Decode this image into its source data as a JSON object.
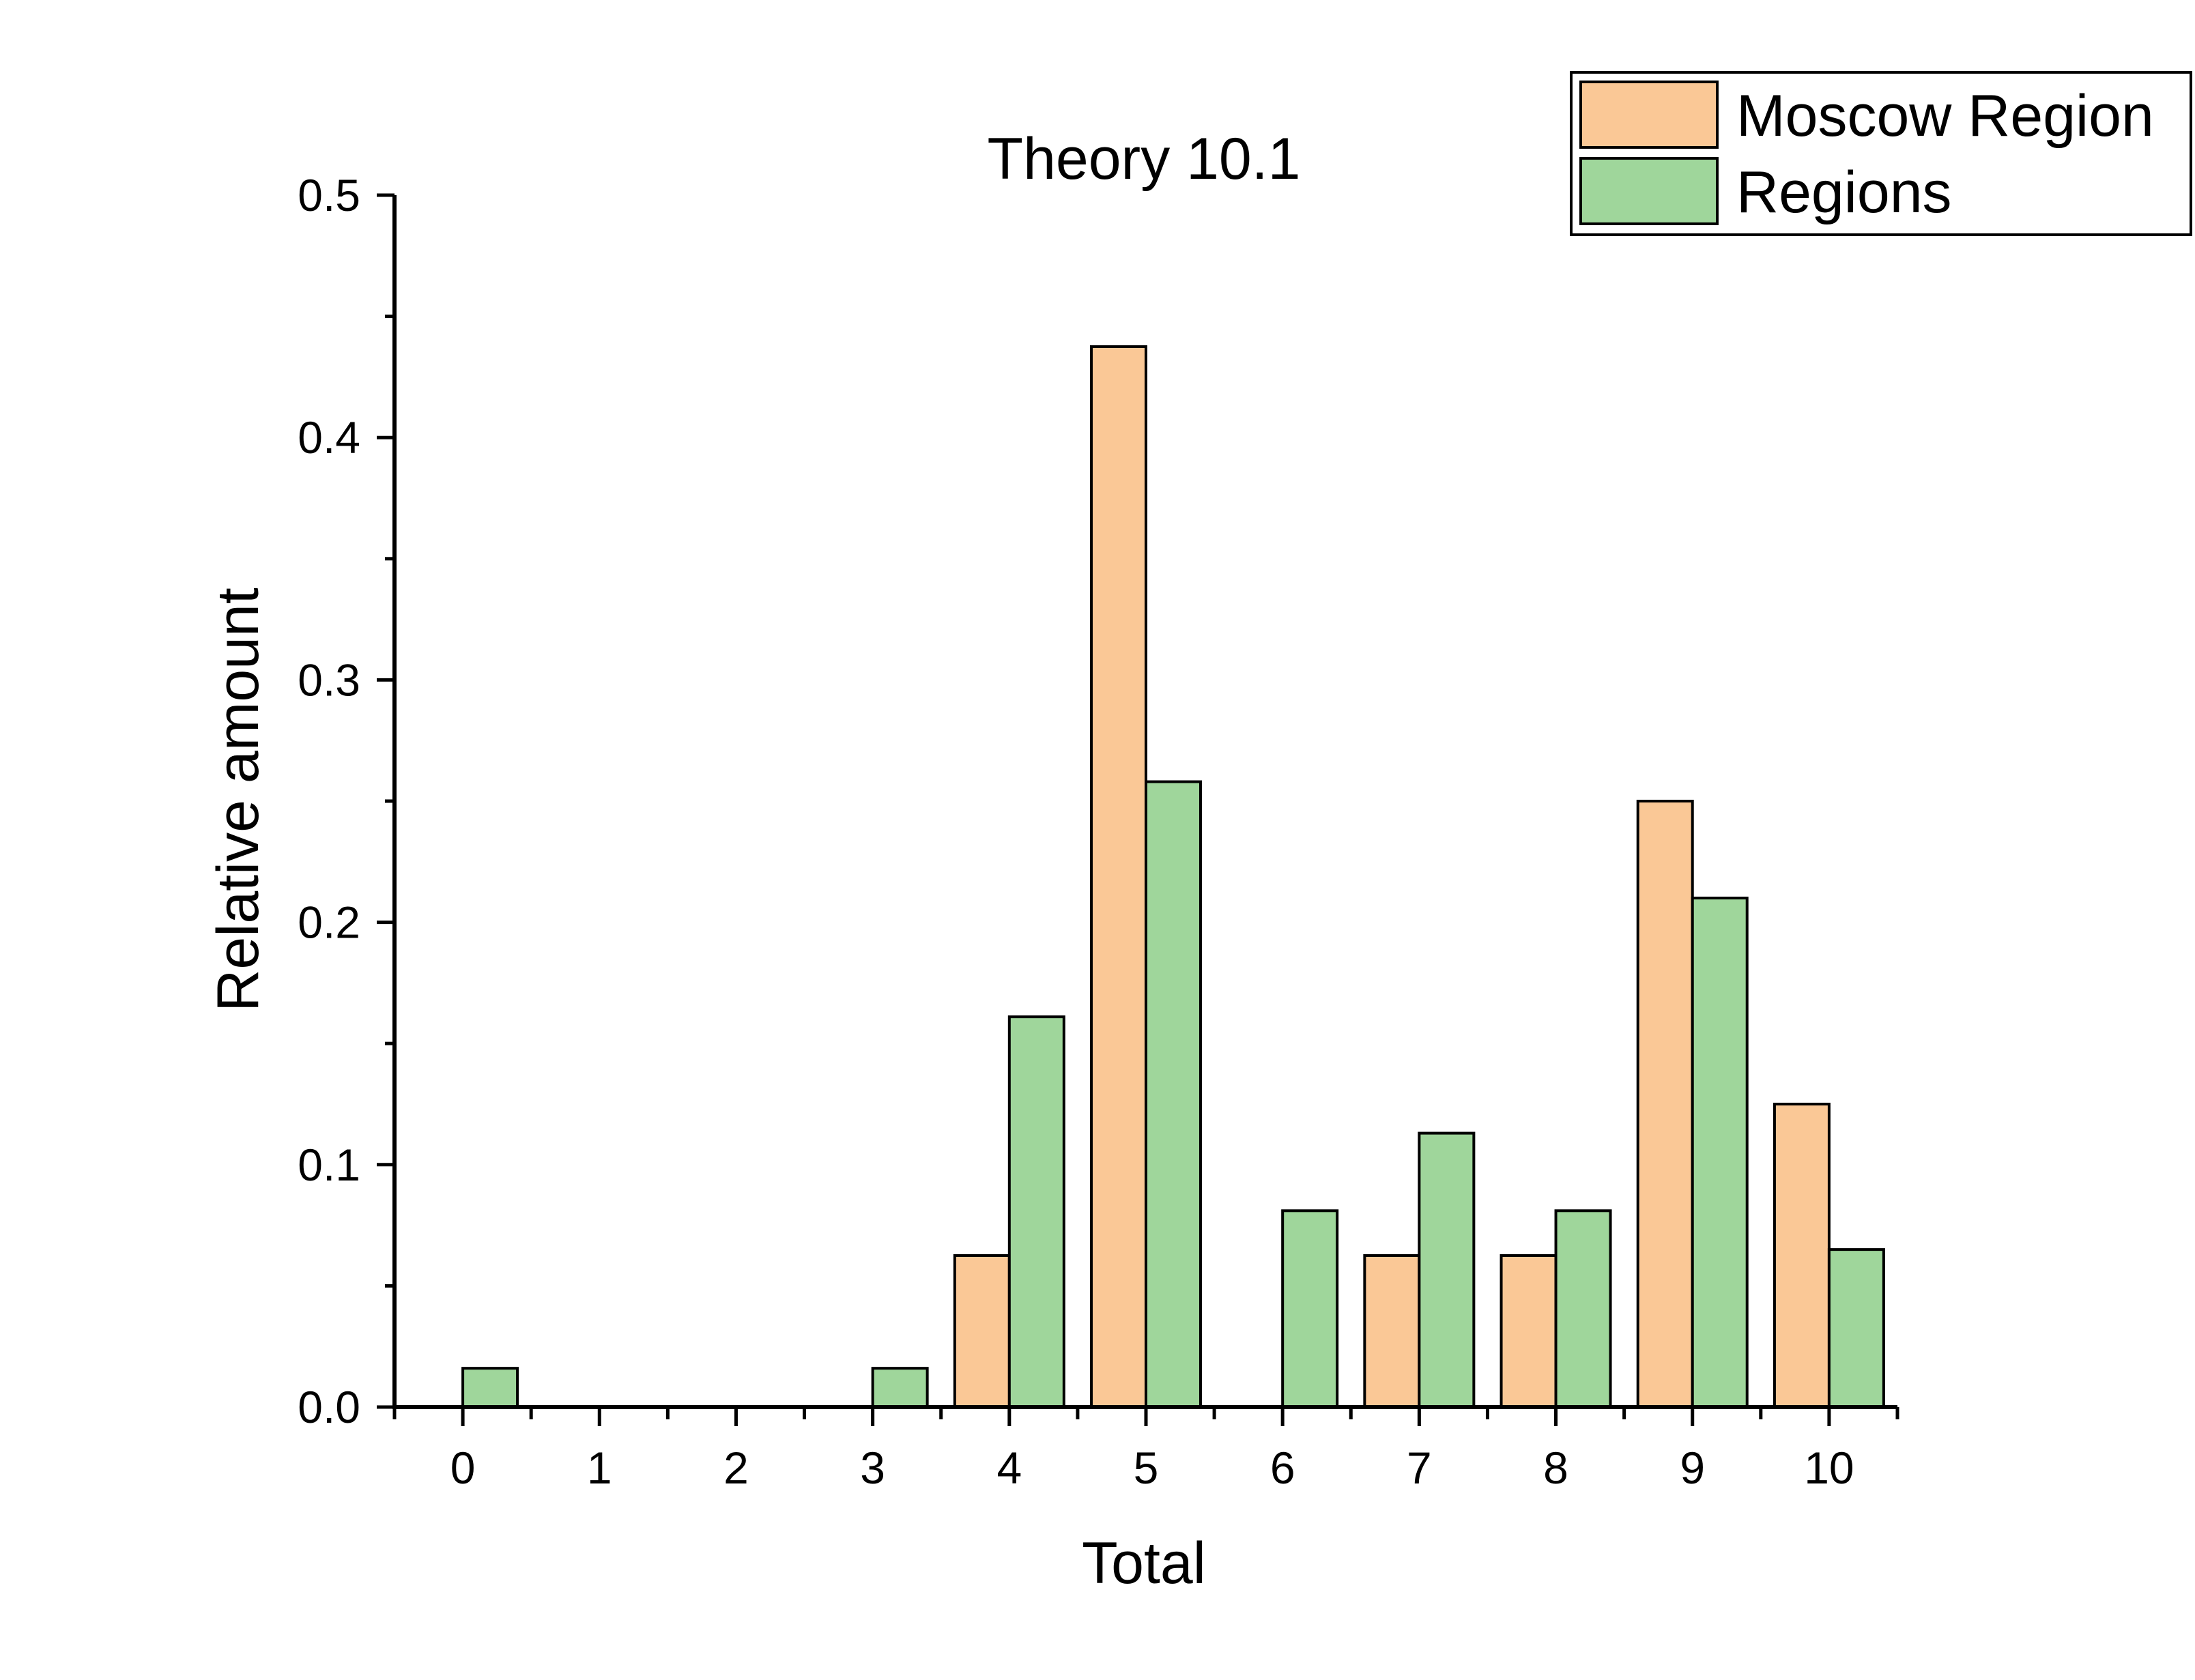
{
  "chart_data": {
    "type": "bar",
    "title": "Theory 10.1",
    "xlabel": "Total",
    "ylabel": "Relative amount",
    "categories": [
      "0",
      "1",
      "2",
      "3",
      "4",
      "5",
      "6",
      "7",
      "8",
      "9",
      "10"
    ],
    "series": [
      {
        "name": "Moscow Region",
        "color": "#fac896",
        "values": [
          0,
          0,
          0,
          0,
          0.0625,
          0.4375,
          0,
          0.0625,
          0.0625,
          0.25,
          0.125
        ]
      },
      {
        "name": "Regions",
        "color": "#9fd69b",
        "values": [
          0.016,
          0,
          0,
          0.016,
          0.161,
          0.258,
          0.081,
          0.113,
          0.081,
          0.21,
          0.065
        ]
      }
    ],
    "ylim": [
      0,
      0.5
    ],
    "y_ticks": [
      "0.0",
      "0.1",
      "0.2",
      "0.3",
      "0.4",
      "0.5"
    ],
    "grid": false,
    "legend_position": "top-right"
  }
}
